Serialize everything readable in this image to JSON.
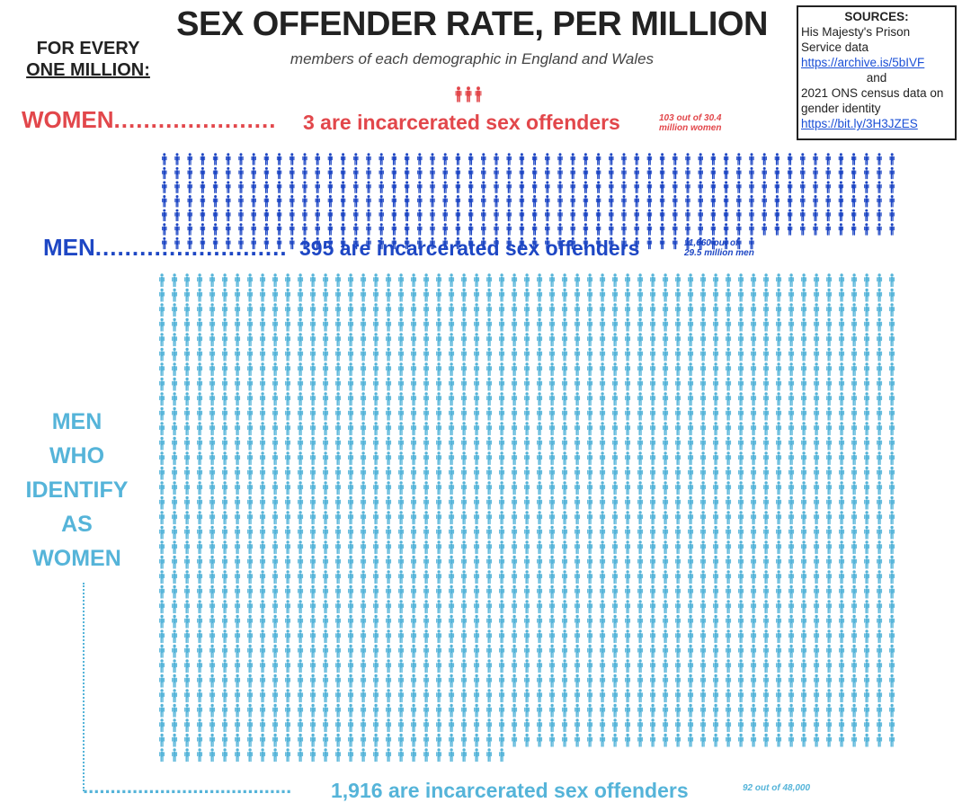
{
  "header": {
    "title": "SEX OFFENDER RATE, PER MILLION",
    "subtitle": "members of each demographic in England and Wales",
    "per_line1": "FOR EVERY",
    "per_line2": "ONE MILLION:"
  },
  "sources": {
    "heading": "SOURCES:",
    "line1": "His Majesty's Prison Service data",
    "link1": "https://archive.is/5bIVF",
    "and": "and",
    "line2": "2021 ONS census data on gender identity",
    "link2": "https://bit.ly/3H3JZES"
  },
  "rows": {
    "women": {
      "label": "WOMEN",
      "dots": "......................",
      "text": "3 are incarcerated sex offenders",
      "note_line1": "103 out of 30.4",
      "note_line2": "million women"
    },
    "men": {
      "label": "MEN",
      "dots": "..........................",
      "text": "395 are incarcerated sex offenders",
      "note_line1": "11,660 out of",
      "note_line2": "29.5 million men"
    },
    "trans_women": {
      "label_line1": "MEN",
      "label_line2": "WHO",
      "label_line3": "IDENTIFY",
      "label_line4": "AS",
      "label_line5": "WOMEN",
      "dots": "......................................",
      "text": "1,916 are incarcerated sex offenders",
      "note_line1": "92 out of 48,000",
      "note_line2": ""
    }
  },
  "colors": {
    "women": "#e2474b",
    "men": "#1e47c4",
    "trans_women": "#55b4d9"
  },
  "chart_data": {
    "type": "pictogram",
    "title": "SEX OFFENDER RATE, PER MILLION",
    "subtitle": "members of each demographic in England and Wales",
    "categories": [
      "WOMEN",
      "MEN",
      "MEN WHO IDENTIFY AS WOMEN"
    ],
    "values": [
      3,
      395,
      1916
    ],
    "unit": "incarcerated sex offenders per one million",
    "icons_per_row": [
      3,
      58,
      59
    ],
    "icon": "person-icon"
  }
}
